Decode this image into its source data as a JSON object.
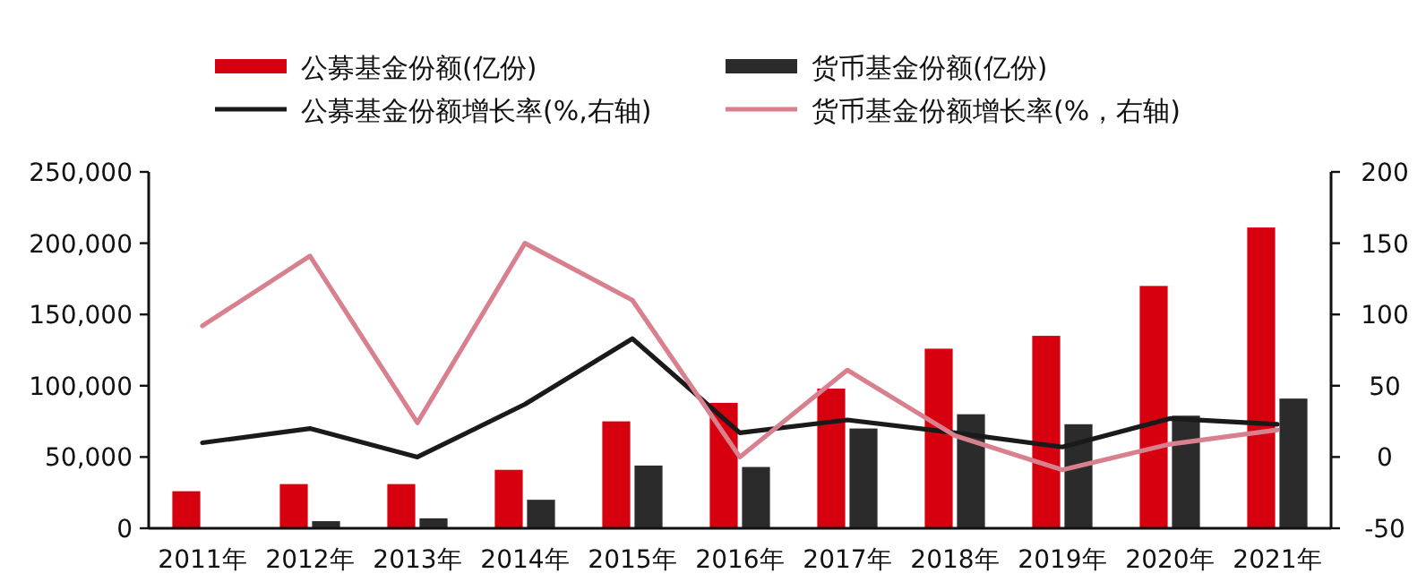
{
  "chart_data": {
    "type": "bar",
    "categories": [
      "2011年",
      "2012年",
      "2013年",
      "2014年",
      "2015年",
      "2016年",
      "2017年",
      "2018年",
      "2019年",
      "2020年",
      "2021年"
    ],
    "series": [
      {
        "name": "公募基金份额(亿份)",
        "color": "#d7000f",
        "values": [
          26000,
          31000,
          31000,
          41000,
          75000,
          88000,
          98000,
          126000,
          135000,
          170000,
          211000
        ]
      },
      {
        "name": "货币基金份额(亿份)",
        "color": "#2b2b2b",
        "values": [
          null,
          5000,
          7000,
          20000,
          44000,
          43000,
          70000,
          80000,
          73000,
          79000,
          91000
        ]
      },
      {
        "name": "公募基金份额增长率(%,右轴)",
        "type": "line",
        "axis": "y2",
        "color": "#1a1a1a",
        "values": [
          10,
          20,
          0,
          37,
          83,
          17,
          26,
          17,
          7,
          27,
          23
        ]
      },
      {
        "name": "货币基金份额增长率(%，右轴)",
        "type": "line",
        "axis": "y2",
        "color": "#d9808f",
        "values": [
          92,
          141,
          24,
          150,
          110,
          0,
          61,
          15,
          -9,
          9,
          19
        ]
      }
    ],
    "ylim": [
      0,
      250000
    ],
    "yticks": [
      {
        "value": 0,
        "label": "0"
      },
      {
        "value": 50000,
        "label": "50,000"
      },
      {
        "value": 100000,
        "label": "100,000"
      },
      {
        "value": 150000,
        "label": "150,000"
      },
      {
        "value": 200000,
        "label": "200,000"
      },
      {
        "value": 250000,
        "label": "250,000"
      }
    ],
    "y2lim": [
      -50,
      200
    ],
    "y2ticks": [
      -50,
      0,
      50,
      100,
      150,
      200
    ],
    "legend": "top",
    "grid": false
  }
}
